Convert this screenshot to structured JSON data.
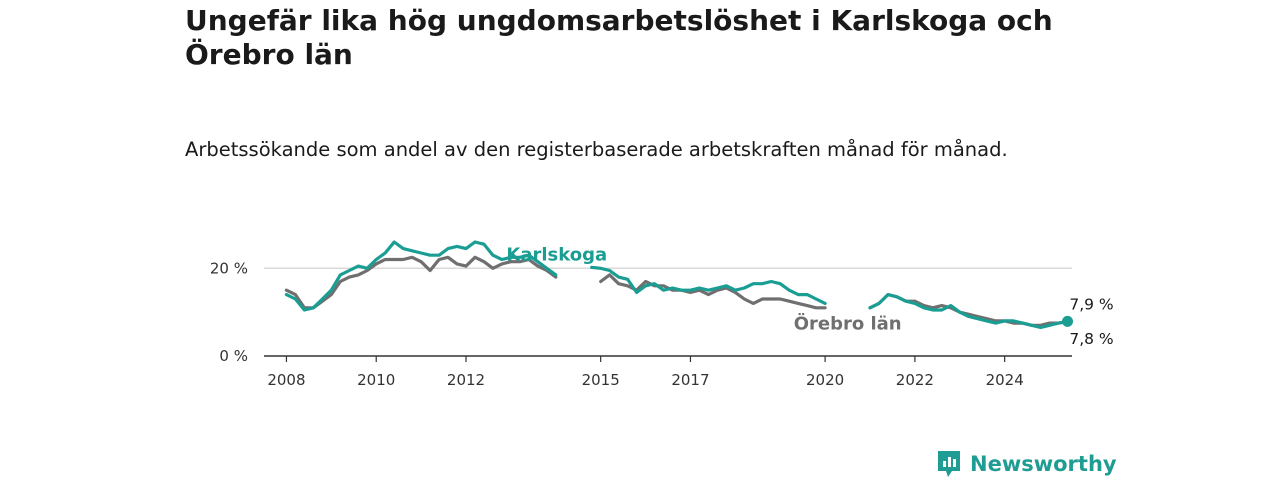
{
  "title": "Ungefär lika hög ungdomsarbetslöshet i Karlskoga och Örebro län",
  "subtitle": "Arbetssökande som andel av den registerbaserade arbetskraften månad för månad.",
  "brand": {
    "name": "Newsworthy",
    "color": "#1f9c93"
  },
  "colors": {
    "karlskoga": "#1a9e93",
    "orebro": "#6f6f6f",
    "grid": "#d9d9d9",
    "axis": "#333333"
  },
  "end_labels": {
    "karlskoga": "7,9 %",
    "orebro": "7,8 %"
  },
  "chart_data": {
    "type": "line",
    "title": "Ungefär lika hög ungdomsarbetslöshet i Karlskoga och Örebro län",
    "subtitle": "Arbetssökande som andel av den registerbaserade arbetskraften månad för månad.",
    "xlabel": "",
    "ylabel": "",
    "xlim": [
      2007.5,
      2025.5
    ],
    "ylim": [
      0,
      26
    ],
    "x_ticks": [
      {
        "value": 2008,
        "label": "2008"
      },
      {
        "value": 2010,
        "label": "2010"
      },
      {
        "value": 2012,
        "label": "2012"
      },
      {
        "value": 2015,
        "label": "2015"
      },
      {
        "value": 2017,
        "label": "2017"
      },
      {
        "value": 2020,
        "label": "2020"
      },
      {
        "value": 2022,
        "label": "2022"
      },
      {
        "value": 2024,
        "label": "2024"
      }
    ],
    "y_ticks": [
      {
        "value": 0,
        "label": "0 %"
      },
      {
        "value": 20,
        "label": "20 %"
      }
    ],
    "grid": true,
    "series": [
      {
        "name": "Karlskoga",
        "segments": [
          [
            [
              2008.0,
              14.0
            ],
            [
              2008.2,
              13.0
            ],
            [
              2008.4,
              10.5
            ],
            [
              2008.6,
              11.0
            ],
            [
              2008.8,
              13.0
            ],
            [
              2009.0,
              15.0
            ],
            [
              2009.2,
              18.5
            ],
            [
              2009.4,
              19.5
            ],
            [
              2009.6,
              20.5
            ],
            [
              2009.8,
              20.0
            ],
            [
              2010.0,
              22.0
            ],
            [
              2010.2,
              23.5
            ],
            [
              2010.4,
              26.0
            ],
            [
              2010.6,
              24.5
            ],
            [
              2010.8,
              24.0
            ],
            [
              2011.0,
              23.5
            ],
            [
              2011.2,
              23.0
            ],
            [
              2011.4,
              23.0
            ],
            [
              2011.6,
              24.5
            ],
            [
              2011.8,
              25.0
            ],
            [
              2012.0,
              24.5
            ],
            [
              2012.2,
              26.0
            ],
            [
              2012.4,
              25.5
            ],
            [
              2012.6,
              23.0
            ],
            [
              2012.8,
              22.0
            ],
            [
              2013.0,
              22.5
            ],
            [
              2013.2,
              22.5
            ],
            [
              2013.4,
              23.0
            ],
            [
              2013.6,
              21.5
            ],
            [
              2013.8,
              20.0
            ],
            [
              2014.0,
              18.5
            ]
          ],
          [
            [
              2014.8,
              20.2
            ],
            [
              2015.0,
              20.0
            ],
            [
              2015.2,
              19.5
            ],
            [
              2015.4,
              18.0
            ],
            [
              2015.6,
              17.5
            ],
            [
              2015.8,
              14.5
            ],
            [
              2016.0,
              16.0
            ],
            [
              2016.2,
              16.5
            ],
            [
              2016.4,
              15.0
            ],
            [
              2016.6,
              15.5
            ],
            [
              2016.8,
              15.0
            ],
            [
              2017.0,
              15.0
            ],
            [
              2017.2,
              15.5
            ],
            [
              2017.4,
              15.0
            ],
            [
              2017.6,
              15.5
            ],
            [
              2017.8,
              16.0
            ],
            [
              2018.0,
              15.0
            ],
            [
              2018.2,
              15.5
            ],
            [
              2018.4,
              16.5
            ],
            [
              2018.6,
              16.5
            ],
            [
              2018.8,
              17.0
            ],
            [
              2019.0,
              16.5
            ],
            [
              2019.2,
              15.0
            ],
            [
              2019.4,
              14.0
            ],
            [
              2019.6,
              14.0
            ],
            [
              2019.8,
              13.0
            ],
            [
              2020.0,
              12.0
            ]
          ],
          [
            [
              2021.0,
              11.0
            ],
            [
              2021.2,
              12.0
            ],
            [
              2021.4,
              14.0
            ],
            [
              2021.6,
              13.5
            ],
            [
              2021.8,
              12.5
            ],
            [
              2022.0,
              12.0
            ],
            [
              2022.2,
              11.0
            ],
            [
              2022.4,
              10.5
            ],
            [
              2022.6,
              10.5
            ],
            [
              2022.8,
              11.5
            ],
            [
              2023.0,
              10.0
            ],
            [
              2023.2,
              9.0
            ],
            [
              2023.4,
              8.5
            ],
            [
              2023.6,
              8.0
            ],
            [
              2023.8,
              7.5
            ],
            [
              2024.0,
              8.0
            ],
            [
              2024.2,
              8.0
            ],
            [
              2024.4,
              7.5
            ],
            [
              2024.6,
              7.0
            ],
            [
              2024.8,
              6.5
            ],
            [
              2025.0,
              7.0
            ],
            [
              2025.2,
              7.5
            ],
            [
              2025.4,
              7.9
            ]
          ]
        ],
        "last_value": 7.9
      },
      {
        "name": "Örebro län",
        "segments": [
          [
            [
              2008.0,
              15.0
            ],
            [
              2008.2,
              14.0
            ],
            [
              2008.4,
              11.0
            ],
            [
              2008.6,
              11.0
            ],
            [
              2008.8,
              12.5
            ],
            [
              2009.0,
              14.0
            ],
            [
              2009.2,
              17.0
            ],
            [
              2009.4,
              18.0
            ],
            [
              2009.6,
              18.5
            ],
            [
              2009.8,
              19.5
            ],
            [
              2010.0,
              21.0
            ],
            [
              2010.2,
              22.0
            ],
            [
              2010.4,
              22.0
            ],
            [
              2010.6,
              22.0
            ],
            [
              2010.8,
              22.5
            ],
            [
              2011.0,
              21.5
            ],
            [
              2011.2,
              19.5
            ],
            [
              2011.4,
              22.0
            ],
            [
              2011.6,
              22.5
            ],
            [
              2011.8,
              21.0
            ],
            [
              2012.0,
              20.5
            ],
            [
              2012.2,
              22.5
            ],
            [
              2012.4,
              21.5
            ],
            [
              2012.6,
              20.0
            ],
            [
              2012.8,
              21.0
            ],
            [
              2013.0,
              21.5
            ],
            [
              2013.2,
              21.5
            ],
            [
              2013.4,
              22.0
            ],
            [
              2013.6,
              20.5
            ],
            [
              2013.8,
              19.5
            ],
            [
              2014.0,
              18.0
            ]
          ],
          [
            [
              2015.0,
              17.0
            ],
            [
              2015.2,
              18.5
            ],
            [
              2015.4,
              16.5
            ],
            [
              2015.6,
              16.0
            ],
            [
              2015.8,
              15.0
            ],
            [
              2016.0,
              17.0
            ],
            [
              2016.2,
              16.0
            ],
            [
              2016.4,
              16.0
            ],
            [
              2016.6,
              15.0
            ],
            [
              2016.8,
              15.0
            ],
            [
              2017.0,
              14.5
            ],
            [
              2017.2,
              15.0
            ],
            [
              2017.4,
              14.0
            ],
            [
              2017.6,
              15.0
            ],
            [
              2017.8,
              15.5
            ],
            [
              2018.0,
              14.5
            ],
            [
              2018.2,
              13.0
            ],
            [
              2018.4,
              12.0
            ],
            [
              2018.6,
              13.0
            ],
            [
              2018.8,
              13.0
            ],
            [
              2019.0,
              13.0
            ],
            [
              2019.2,
              12.5
            ],
            [
              2019.4,
              12.0
            ],
            [
              2019.6,
              11.5
            ],
            [
              2019.8,
              11.0
            ],
            [
              2020.0,
              11.0
            ]
          ],
          [
            [
              2021.0,
              11.0
            ],
            [
              2021.2,
              12.0
            ],
            [
              2021.4,
              14.0
            ],
            [
              2021.6,
              13.5
            ],
            [
              2021.8,
              12.5
            ],
            [
              2022.0,
              12.5
            ],
            [
              2022.2,
              11.5
            ],
            [
              2022.4,
              11.0
            ],
            [
              2022.6,
              11.5
            ],
            [
              2022.8,
              11.0
            ],
            [
              2023.0,
              10.0
            ],
            [
              2023.2,
              9.5
            ],
            [
              2023.4,
              9.0
            ],
            [
              2023.6,
              8.5
            ],
            [
              2023.8,
              8.0
            ],
            [
              2024.0,
              8.0
            ],
            [
              2024.2,
              7.5
            ],
            [
              2024.4,
              7.5
            ],
            [
              2024.6,
              7.0
            ],
            [
              2024.8,
              7.0
            ],
            [
              2025.0,
              7.5
            ],
            [
              2025.2,
              7.5
            ],
            [
              2025.4,
              7.8
            ]
          ]
        ],
        "last_value": 7.8
      }
    ]
  }
}
